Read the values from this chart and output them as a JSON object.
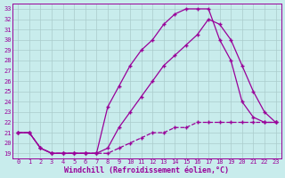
{
  "xlabel": "Windchill (Refroidissement éolien,°C)",
  "background_color": "#c8ecec",
  "line_color": "#990099",
  "grid_color": "#aacccc",
  "xlim": [
    -0.5,
    23.5
  ],
  "ylim": [
    18.5,
    33.5
  ],
  "xticks": [
    0,
    1,
    2,
    3,
    4,
    5,
    6,
    7,
    8,
    9,
    10,
    11,
    12,
    13,
    14,
    15,
    16,
    17,
    18,
    19,
    20,
    21,
    22,
    23
  ],
  "yticks": [
    19,
    20,
    21,
    22,
    23,
    24,
    25,
    26,
    27,
    28,
    29,
    30,
    31,
    32,
    33
  ],
  "line1_x": [
    0,
    1,
    2,
    3,
    4,
    5,
    6,
    7,
    8,
    9,
    10,
    11,
    12,
    13,
    14,
    15,
    16,
    17,
    18,
    19,
    20,
    21,
    22,
    23
  ],
  "line1_y": [
    21.0,
    21.0,
    19.5,
    19.0,
    19.0,
    19.0,
    19.0,
    19.0,
    19.0,
    19.5,
    20.0,
    20.5,
    21.0,
    21.0,
    21.5,
    21.5,
    22.0,
    22.0,
    22.0,
    22.0,
    22.0,
    22.0,
    22.0,
    22.0
  ],
  "line2_x": [
    0,
    1,
    2,
    3,
    4,
    5,
    6,
    7,
    8,
    9,
    10,
    11,
    12,
    13,
    14,
    15,
    16,
    17,
    18,
    19,
    20,
    21,
    22,
    23
  ],
  "line2_y": [
    21.0,
    21.0,
    19.5,
    19.0,
    19.0,
    19.0,
    19.0,
    19.0,
    23.5,
    25.5,
    27.5,
    29.0,
    30.0,
    31.5,
    32.5,
    33.0,
    33.0,
    33.0,
    30.0,
    28.0,
    24.0,
    22.5,
    22.0,
    22.0
  ],
  "line3_x": [
    0,
    1,
    2,
    3,
    4,
    5,
    6,
    7,
    8,
    9,
    10,
    11,
    12,
    13,
    14,
    15,
    16,
    17,
    18,
    19,
    20,
    21,
    22,
    23
  ],
  "line3_y": [
    21.0,
    21.0,
    19.5,
    19.0,
    19.0,
    19.0,
    19.0,
    19.0,
    19.5,
    21.5,
    23.0,
    24.5,
    26.0,
    27.5,
    28.5,
    29.5,
    30.5,
    32.0,
    31.5,
    30.0,
    27.5,
    25.0,
    23.0,
    22.0
  ]
}
